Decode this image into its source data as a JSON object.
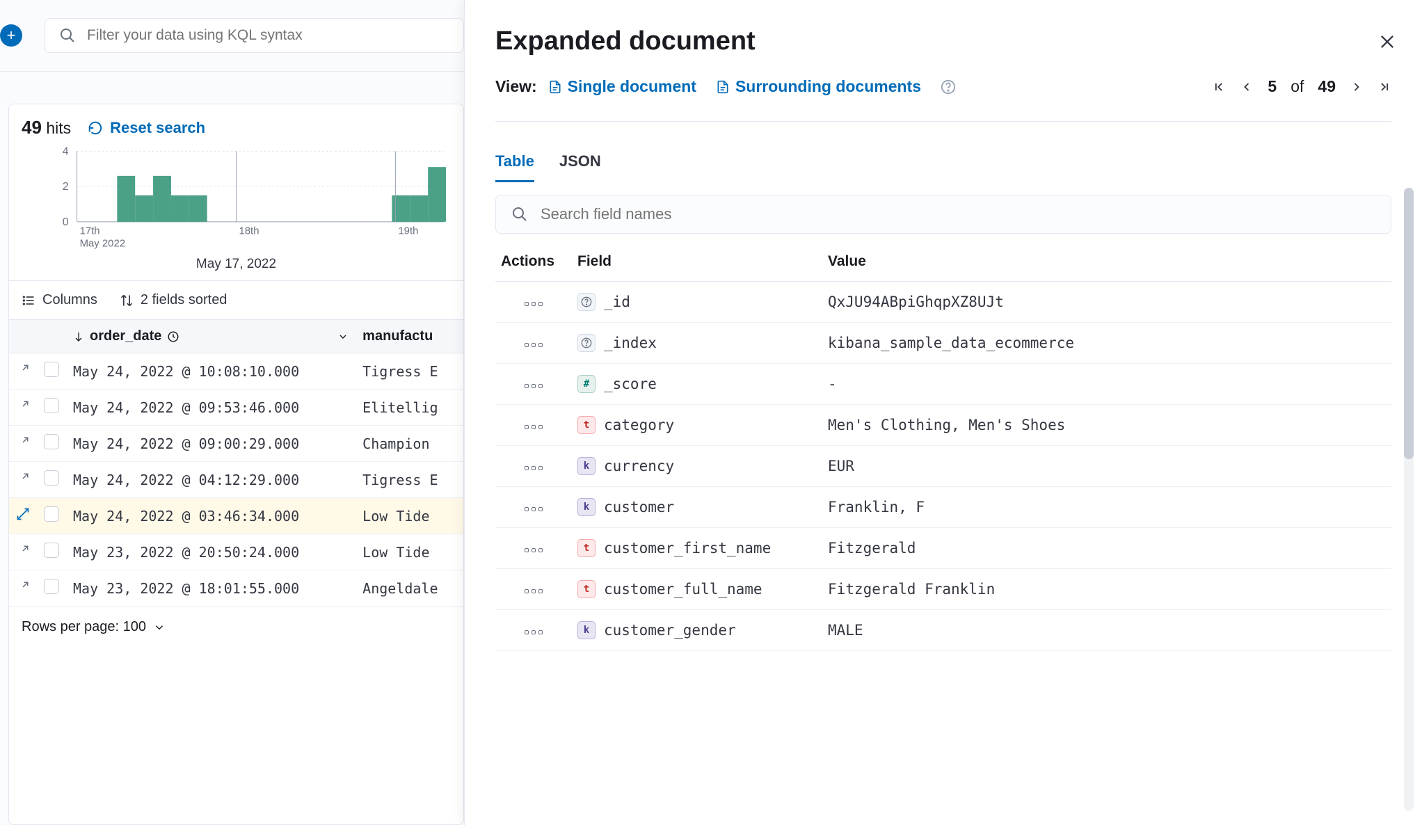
{
  "topbar": {
    "filter_placeholder": "Filter your data using KQL syntax"
  },
  "results": {
    "hits_count": "49",
    "hits_label": "hits",
    "reset_label": "Reset search",
    "chart": {
      "type": "bar",
      "y_ticks": [
        0,
        2,
        4
      ],
      "y_max": 4,
      "x_labels": [
        "17th",
        "18th",
        "19th"
      ],
      "x_sublabel": "May 2022",
      "bar_color": "#4aa187",
      "grid_color": "#e0e4eb",
      "axis_color": "#98a2b3",
      "bars_groups": [
        {
          "x_offset": 58,
          "bars": [
            2.6,
            1.5,
            2.6,
            1.5,
            1.5
          ]
        },
        {
          "x_offset": 455,
          "bars": [
            1.5,
            1.5,
            3.1
          ]
        }
      ],
      "caption": "May 17, 2022"
    },
    "columns_label": "Columns",
    "sorted_label": "2 fields sorted",
    "table": {
      "col_order_date": "order_date",
      "col_manufacturer": "manufactu",
      "rows": [
        {
          "date": "May 24, 2022 @ 10:08:10.000",
          "manufacturer": "Tigress E",
          "selected": false
        },
        {
          "date": "May 24, 2022 @ 09:53:46.000",
          "manufacturer": "Elitellig",
          "selected": false
        },
        {
          "date": "May 24, 2022 @ 09:00:29.000",
          "manufacturer": "Champion",
          "selected": false
        },
        {
          "date": "May 24, 2022 @ 04:12:29.000",
          "manufacturer": "Tigress E",
          "selected": false
        },
        {
          "date": "May 24, 2022 @ 03:46:34.000",
          "manufacturer": "Low Tide",
          "selected": true
        },
        {
          "date": "May 23, 2022 @ 20:50:24.000",
          "manufacturer": "Low Tide",
          "selected": false
        },
        {
          "date": "May 23, 2022 @ 18:01:55.000",
          "manufacturer": "Angeldale",
          "selected": false
        }
      ]
    },
    "rows_per_page_label": "Rows per page: 100"
  },
  "flyout": {
    "title": "Expanded document",
    "view_label": "View:",
    "single_doc_label": "Single document",
    "surrounding_label": "Surrounding documents",
    "pager": {
      "current": "5",
      "of_label": "of",
      "total": "49"
    },
    "tabs": {
      "table": "Table",
      "json": "JSON"
    },
    "field_search_placeholder": "Search field names",
    "table_headers": {
      "actions": "Actions",
      "field": "Field",
      "value": "Value"
    },
    "fields": [
      {
        "type": "meta",
        "badge": "?",
        "name": "_id",
        "value": "QxJU94ABpiGhqpXZ8UJt"
      },
      {
        "type": "meta",
        "badge": "?",
        "name": "_index",
        "value": "kibana_sample_data_ecommerce"
      },
      {
        "type": "num",
        "badge": "#",
        "name": "_score",
        "value": "-"
      },
      {
        "type": "t",
        "badge": "t",
        "name": "category",
        "value": "Men's Clothing, Men's Shoes"
      },
      {
        "type": "k",
        "badge": "k",
        "name": "currency",
        "value": "EUR"
      },
      {
        "type": "k",
        "badge": "k",
        "name": "customer",
        "value": "Franklin, F"
      },
      {
        "type": "t",
        "badge": "t",
        "name": "customer_first_name",
        "value": "Fitzgerald"
      },
      {
        "type": "t",
        "badge": "t",
        "name": "customer_full_name",
        "value": "Fitzgerald Franklin"
      },
      {
        "type": "k",
        "badge": "k",
        "name": "customer_gender",
        "value": "MALE"
      }
    ]
  }
}
